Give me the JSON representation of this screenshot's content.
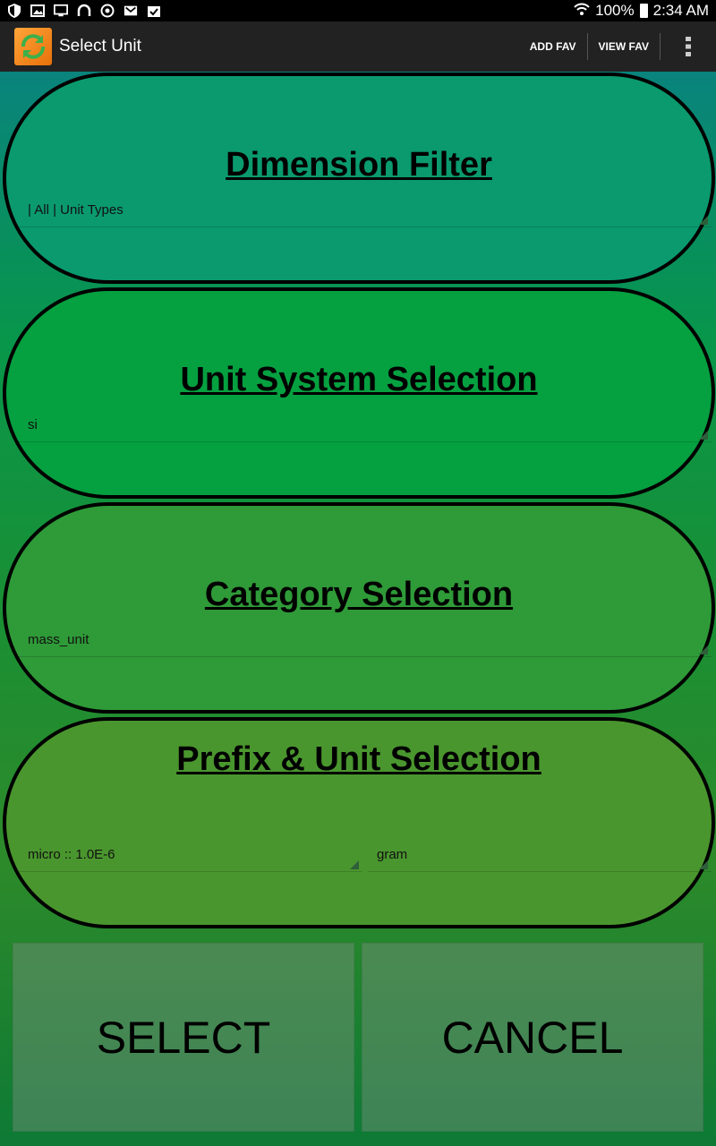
{
  "status_bar": {
    "battery": "100%",
    "time": "2:34 AM"
  },
  "action_bar": {
    "title": "Select Unit",
    "add_fav": "ADD FAV",
    "view_fav": "VIEW FAV"
  },
  "dimension_filter": {
    "title": "Dimension Filter",
    "value": "| All | Unit Types"
  },
  "unit_system": {
    "title": "Unit System Selection",
    "value": "si"
  },
  "category": {
    "title": "Category Selection",
    "value": "mass_unit"
  },
  "prefix_unit": {
    "title": "Prefix & Unit Selection",
    "prefix_value": "micro  ::  1.0E-6",
    "unit_value": "gram"
  },
  "buttons": {
    "select": "SELECT",
    "cancel": "CANCEL"
  },
  "colors": {
    "card_1": "#0a9a6e",
    "card_2": "#05a040",
    "card_3": "#2f9a38",
    "card_4": "#4a962e"
  }
}
